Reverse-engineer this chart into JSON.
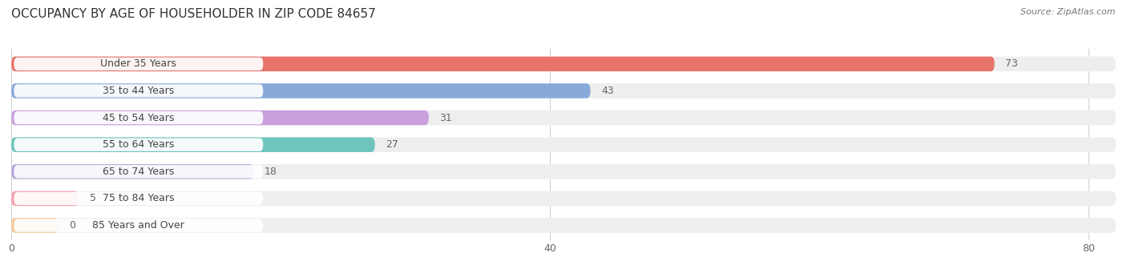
{
  "title": "OCCUPANCY BY AGE OF HOUSEHOLDER IN ZIP CODE 84657",
  "source": "Source: ZipAtlas.com",
  "categories": [
    "Under 35 Years",
    "35 to 44 Years",
    "45 to 54 Years",
    "55 to 64 Years",
    "65 to 74 Years",
    "75 to 84 Years",
    "85 Years and Over"
  ],
  "values": [
    73,
    43,
    31,
    27,
    18,
    5,
    0
  ],
  "bar_colors": [
    "#E8736A",
    "#88AADB",
    "#C9A0DC",
    "#6DC5BC",
    "#B8A8DC",
    "#F4A0B0",
    "#F5C89A"
  ],
  "background_color": "#ffffff",
  "bar_bg_color": "#eeeeee",
  "xlim_max": 82,
  "xticks": [
    0,
    40,
    80
  ],
  "title_fontsize": 11,
  "label_fontsize": 9,
  "value_fontsize": 9,
  "bar_height": 0.55,
  "bar_gap": 1.0
}
